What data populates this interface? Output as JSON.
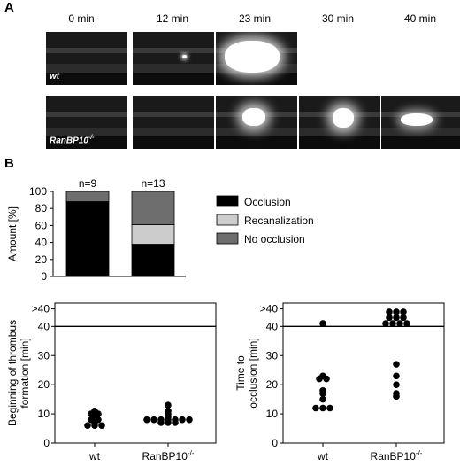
{
  "panel_a": {
    "letter": "A",
    "time_labels": [
      "0 min",
      "12 min",
      "23 min",
      "30 min",
      "40 min"
    ],
    "row_labels": [
      "wt",
      "RanBP10"
    ],
    "row2_superscript": "-/-"
  },
  "panel_b": {
    "letter": "B"
  },
  "chart_data": [
    {
      "type": "bar",
      "subtype": "stacked-percent",
      "categories": [
        "n=9",
        "n=13"
      ],
      "ylabel": "Amount [%]",
      "ylim": [
        0,
        100
      ],
      "yticks": [
        "0",
        "20",
        "40",
        "60",
        "80",
        "100"
      ],
      "series": [
        {
          "name": "Occlusion",
          "color": "#000000",
          "values": [
            88,
            38
          ]
        },
        {
          "name": "Recanalization",
          "color": "#cccccc",
          "values": [
            0,
            23
          ]
        },
        {
          "name": "No occlusion",
          "color": "#6e6e6e",
          "values": [
            12,
            39
          ]
        }
      ],
      "legend_position": "right"
    },
    {
      "type": "scatter",
      "subtype": "dot-plot",
      "categories": [
        "wt",
        "RanBP10"
      ],
      "category_superscripts": [
        "",
        "-/-"
      ],
      "ylabel": "Beginning of thrombus formation [min]",
      "yticks": [
        "0",
        "10",
        "20",
        "30",
        "40",
        ">40"
      ],
      "ylim": [
        0,
        48
      ],
      "threshold_line": 40,
      "series": [
        {
          "name": "wt",
          "values": [
            9,
            10,
            10,
            11,
            8,
            8,
            7,
            6,
            6,
            6
          ]
        },
        {
          "name": "RanBP10",
          "values": [
            7,
            7,
            7,
            8,
            8,
            8,
            8,
            8,
            8,
            8,
            9,
            10,
            11,
            13
          ]
        }
      ]
    },
    {
      "type": "scatter",
      "subtype": "dot-plot",
      "categories": [
        "wt",
        "RanBP10"
      ],
      "category_superscripts": [
        "",
        "-/-"
      ],
      "ylabel": "Time to occlusion [min]",
      "yticks": [
        "0",
        "10",
        "20",
        "30",
        "40",
        ">40"
      ],
      "ylim": [
        0,
        48
      ],
      "threshold_line": 40,
      "series": [
        {
          "name": "wt",
          "values": [
            41,
            23,
            22,
            22,
            18,
            17,
            15,
            12,
            12,
            12
          ]
        },
        {
          "name": "RanBP10",
          "values": [
            45,
            45,
            45,
            43,
            43,
            43,
            41,
            41,
            41,
            41,
            27,
            23,
            20,
            17,
            16
          ]
        }
      ]
    }
  ]
}
